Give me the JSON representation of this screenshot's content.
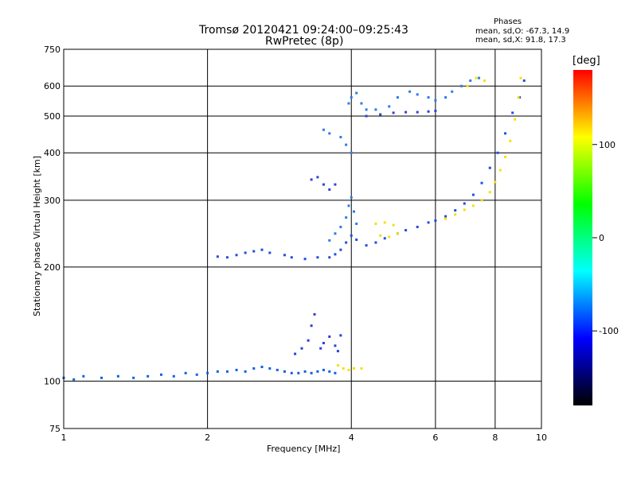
{
  "chart_data": {
    "type": "scatter",
    "title": "Tromsø 20120421 09:24:00–09:25:43",
    "subtitle": "RwPretec (8p)",
    "xlabel": "Frequency [MHz]",
    "ylabel": "Stationary phase Virtual Height [km]",
    "x_scale": "log",
    "y_scale": "log",
    "xlim": [
      1,
      10
    ],
    "ylim": [
      75,
      750
    ],
    "x_ticks": [
      1,
      2,
      4,
      6,
      8,
      10
    ],
    "y_ticks": [
      75,
      100,
      200,
      300,
      400,
      500,
      600,
      750
    ],
    "grid": true,
    "phases": {
      "title": "Phases",
      "line_o": "mean, sd,O: -67.3, 14.9",
      "line_x": "mean, sd,X:  91.8, 17.3"
    },
    "colorbar": {
      "unit": "[deg]",
      "ticks": [
        100,
        0,
        -100
      ],
      "range": [
        -180,
        180
      ],
      "colors": [
        "#ff0000",
        "#ffff00",
        "#00ff00",
        "#00ffff",
        "#0000ff",
        "#000000"
      ]
    },
    "series": [
      {
        "color": "#1060e0",
        "points": [
          [
            1.0,
            102
          ],
          [
            1.05,
            101
          ],
          [
            1.1,
            103
          ],
          [
            1.2,
            102
          ],
          [
            1.3,
            103
          ],
          [
            1.4,
            102
          ],
          [
            1.5,
            103
          ],
          [
            1.6,
            104
          ],
          [
            1.7,
            103
          ],
          [
            1.8,
            105
          ],
          [
            1.9,
            104
          ],
          [
            2.0,
            105
          ],
          [
            2.1,
            106
          ],
          [
            2.2,
            106
          ],
          [
            2.3,
            107
          ],
          [
            2.4,
            106
          ],
          [
            2.5,
            108
          ],
          [
            2.6,
            109
          ],
          [
            2.7,
            108
          ],
          [
            2.8,
            107
          ],
          [
            2.9,
            106
          ],
          [
            3.0,
            105
          ],
          [
            3.1,
            105
          ],
          [
            3.2,
            106
          ],
          [
            3.3,
            105
          ],
          [
            3.4,
            106
          ],
          [
            3.5,
            107
          ],
          [
            3.6,
            106
          ],
          [
            3.7,
            105
          ]
        ]
      },
      {
        "color": "#2a3fd8",
        "points": [
          [
            3.05,
            118
          ],
          [
            3.15,
            122
          ],
          [
            3.25,
            128
          ],
          [
            3.3,
            140
          ],
          [
            3.35,
            150
          ],
          [
            3.45,
            122
          ],
          [
            3.5,
            126
          ],
          [
            3.6,
            131
          ],
          [
            3.7,
            124
          ],
          [
            3.75,
            120
          ],
          [
            3.8,
            132
          ]
        ]
      },
      {
        "color": "#1f4fe0",
        "points": [
          [
            2.1,
            213
          ],
          [
            2.2,
            212
          ],
          [
            2.3,
            215
          ],
          [
            2.4,
            218
          ],
          [
            2.5,
            220
          ],
          [
            2.6,
            222
          ],
          [
            2.7,
            218
          ],
          [
            2.9,
            215
          ],
          [
            3.0,
            212
          ],
          [
            3.2,
            210
          ],
          [
            3.4,
            212
          ],
          [
            3.6,
            212
          ],
          [
            3.7,
            216
          ],
          [
            3.8,
            222
          ],
          [
            3.9,
            232
          ],
          [
            4.0,
            242
          ],
          [
            4.1,
            236
          ],
          [
            4.3,
            228
          ],
          [
            4.5,
            232
          ],
          [
            4.7,
            238
          ],
          [
            5.0,
            245
          ],
          [
            5.2,
            250
          ],
          [
            5.5,
            255
          ],
          [
            5.8,
            262
          ],
          [
            6.0,
            265
          ],
          [
            6.3,
            272
          ],
          [
            6.6,
            282
          ],
          [
            6.9,
            294
          ],
          [
            7.2,
            310
          ],
          [
            7.5,
            333
          ],
          [
            7.8,
            365
          ],
          [
            8.1,
            400
          ],
          [
            8.4,
            450
          ],
          [
            8.7,
            510
          ],
          [
            9.0,
            560
          ],
          [
            9.2,
            620
          ]
        ]
      },
      {
        "color": "#2b7de8",
        "points": [
          [
            3.6,
            235
          ],
          [
            3.7,
            245
          ],
          [
            3.8,
            255
          ],
          [
            3.9,
            270
          ],
          [
            3.95,
            290
          ],
          [
            4.0,
            305
          ],
          [
            4.05,
            280
          ],
          [
            4.1,
            260
          ],
          [
            4.0,
            400
          ],
          [
            3.9,
            420
          ],
          [
            3.8,
            440
          ],
          [
            3.6,
            450
          ],
          [
            3.5,
            460
          ],
          [
            3.95,
            540
          ],
          [
            4.0,
            560
          ],
          [
            4.1,
            575
          ],
          [
            4.2,
            540
          ],
          [
            4.3,
            520
          ],
          [
            4.5,
            520
          ],
          [
            4.8,
            530
          ],
          [
            5.0,
            560
          ],
          [
            5.3,
            580
          ],
          [
            5.5,
            570
          ],
          [
            5.8,
            560
          ],
          [
            6.0,
            550
          ],
          [
            6.3,
            560
          ],
          [
            6.5,
            580
          ],
          [
            6.8,
            600
          ],
          [
            7.1,
            620
          ],
          [
            7.4,
            630
          ]
        ]
      },
      {
        "color": "#3344cc",
        "points": [
          [
            3.3,
            340
          ],
          [
            3.4,
            345
          ],
          [
            3.5,
            330
          ],
          [
            3.6,
            320
          ],
          [
            3.7,
            330
          ],
          [
            4.3,
            500
          ],
          [
            4.6,
            505
          ],
          [
            4.9,
            510
          ],
          [
            5.2,
            512
          ],
          [
            5.5,
            512
          ],
          [
            5.8,
            514
          ],
          [
            6.0,
            516
          ]
        ]
      },
      {
        "color": "#f2e10a",
        "points": [
          [
            3.75,
            110
          ],
          [
            3.85,
            108
          ],
          [
            3.95,
            107
          ],
          [
            4.05,
            108
          ],
          [
            4.2,
            108
          ],
          [
            4.5,
            260
          ],
          [
            4.7,
            262
          ],
          [
            4.9,
            258
          ],
          [
            4.6,
            242
          ],
          [
            4.8,
            240
          ],
          [
            5.0,
            245
          ],
          [
            6.3,
            268
          ],
          [
            6.6,
            275
          ],
          [
            6.9,
            283
          ],
          [
            7.2,
            290
          ],
          [
            7.5,
            300
          ],
          [
            7.8,
            315
          ],
          [
            8.0,
            335
          ],
          [
            8.2,
            360
          ],
          [
            8.4,
            390
          ],
          [
            8.6,
            430
          ],
          [
            8.8,
            490
          ],
          [
            8.95,
            560
          ],
          [
            9.05,
            630
          ],
          [
            7.0,
            600
          ],
          [
            7.3,
            630
          ],
          [
            7.6,
            620
          ]
        ]
      }
    ]
  }
}
